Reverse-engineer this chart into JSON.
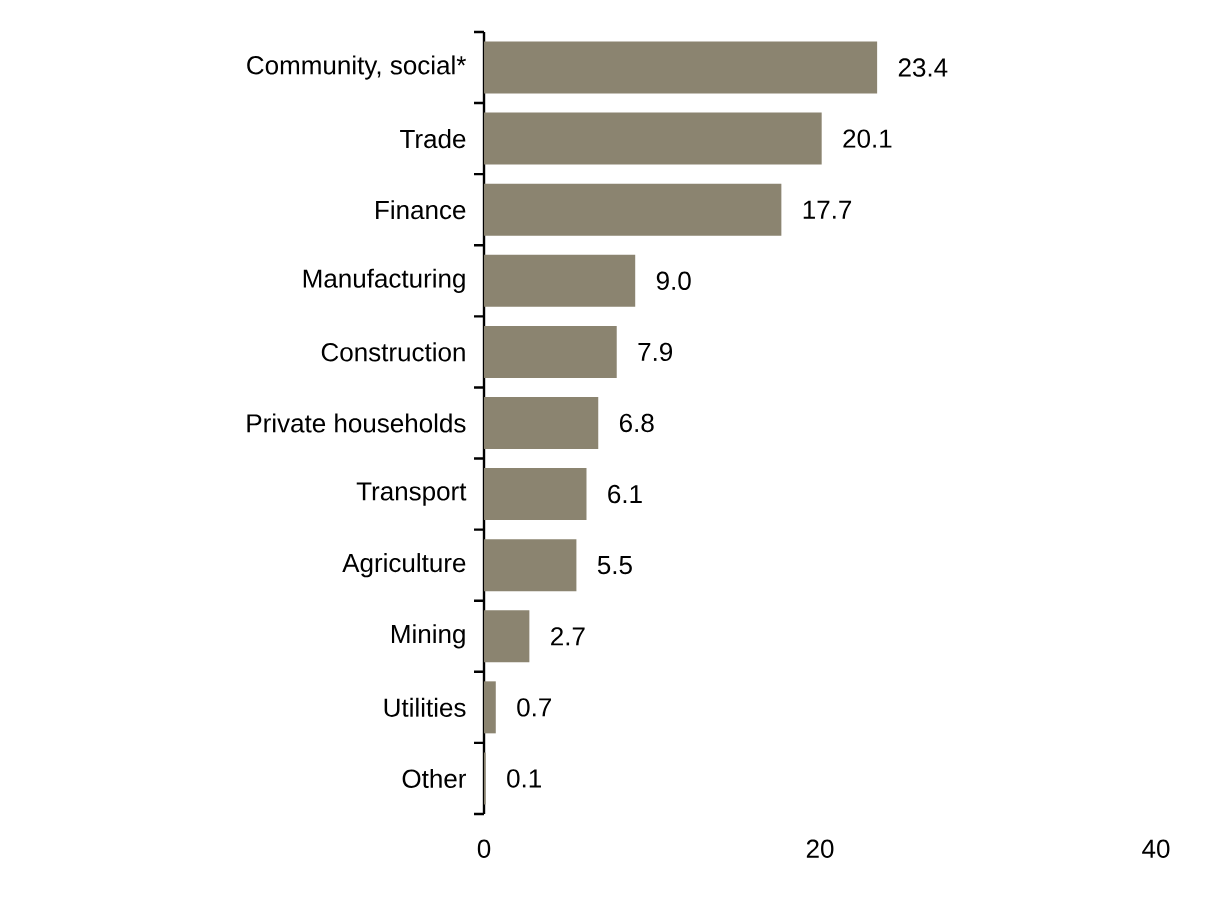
{
  "chart_data": {
    "type": "bar",
    "orientation": "horizontal",
    "categories": [
      "Community, social*",
      "Trade",
      "Finance",
      "Manufacturing",
      "Construction",
      "Private households",
      "Transport",
      "Agriculture",
      "Mining",
      "Utilities",
      "Other"
    ],
    "values": [
      23.4,
      20.1,
      17.7,
      9.0,
      7.9,
      6.8,
      6.1,
      5.5,
      2.7,
      0.7,
      0.1
    ],
    "value_labels": [
      "23.4",
      "20.1",
      "17.7",
      "9.0",
      "7.9",
      "6.8",
      "6.1",
      "5.5",
      "2.7",
      "0.7",
      "0.1"
    ],
    "color": "#8b8470",
    "xlim": [
      0,
      40
    ],
    "xticks": [
      0,
      20,
      40
    ],
    "grid": false
  }
}
